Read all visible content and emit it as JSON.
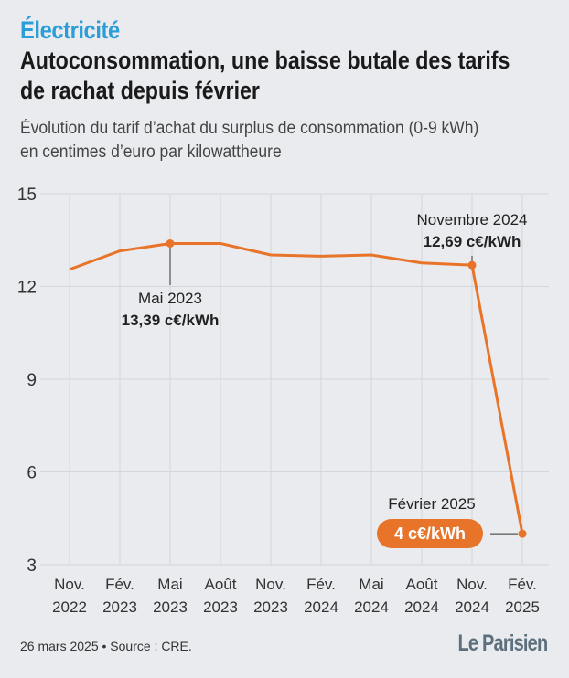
{
  "kicker": "Électricité",
  "title": "Autoconsommation, une baisse butale des tarifs de rachat depuis février",
  "subtitle_line1": "Évolution du tarif d’achat du surplus de consommation (0-9 kWh)",
  "subtitle_line2": "en centimes d’euro par kilowattheure",
  "footer": "26 mars 2025 • Source : CRE.",
  "logo": "Le Parisien",
  "colors": {
    "line": "#e8742a",
    "accent": "#2b9ed8",
    "grid": "#d2d6db"
  },
  "chart_data": {
    "type": "line",
    "categories": [
      [
        "Nov.",
        "2022"
      ],
      [
        "Fév.",
        "2023"
      ],
      [
        "Mai",
        "2023"
      ],
      [
        "Août",
        "2023"
      ],
      [
        "Nov.",
        "2023"
      ],
      [
        "Fév.",
        "2024"
      ],
      [
        "Mai",
        "2024"
      ],
      [
        "Août",
        "2024"
      ],
      [
        "Nov.",
        "2024"
      ],
      [
        "Fév.",
        "2025"
      ]
    ],
    "values": [
      12.55,
      13.15,
      13.39,
      13.39,
      13.02,
      12.98,
      13.02,
      12.76,
      12.69,
      4
    ],
    "ylim": [
      3,
      15
    ],
    "yticks": [
      3,
      6,
      9,
      12,
      15
    ],
    "grid": true,
    "annotations": [
      {
        "index": 2,
        "label": "Mai 2023",
        "value_text": "13,39 c€/kWh"
      },
      {
        "index": 8,
        "label": "Novembre 2024",
        "value_text": "12,69 c€/kWh"
      },
      {
        "index": 9,
        "label": "Février 2025",
        "value_text": "4 c€/kWh"
      }
    ]
  }
}
